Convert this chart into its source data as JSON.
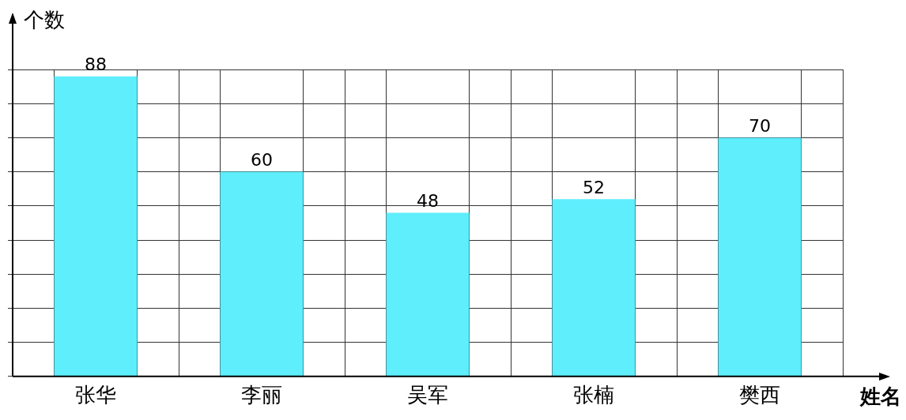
{
  "chart_data": {
    "type": "bar",
    "xlabel": "姓名",
    "ylabel": "个数",
    "categories": [
      "张华",
      "李丽",
      "吴军",
      "张楠",
      "樊西"
    ],
    "values": [
      88,
      60,
      48,
      52,
      70
    ],
    "color": "#5eeefc",
    "ylim": [
      0,
      90
    ],
    "yticks": [
      {
        "value": 0,
        "label": null
      },
      {
        "value": 10,
        "label": null
      },
      {
        "value": 20,
        "label": null
      },
      {
        "value": 30,
        "label": null
      },
      {
        "value": 40,
        "label": null
      },
      {
        "value": 50,
        "label": null
      },
      {
        "value": 60,
        "label": null
      },
      {
        "value": 70,
        "label": null
      },
      {
        "value": 80,
        "label": null
      },
      {
        "value": 90,
        "label": null
      }
    ],
    "tick_labels": "x",
    "grid": true,
    "data_labels": true
  }
}
